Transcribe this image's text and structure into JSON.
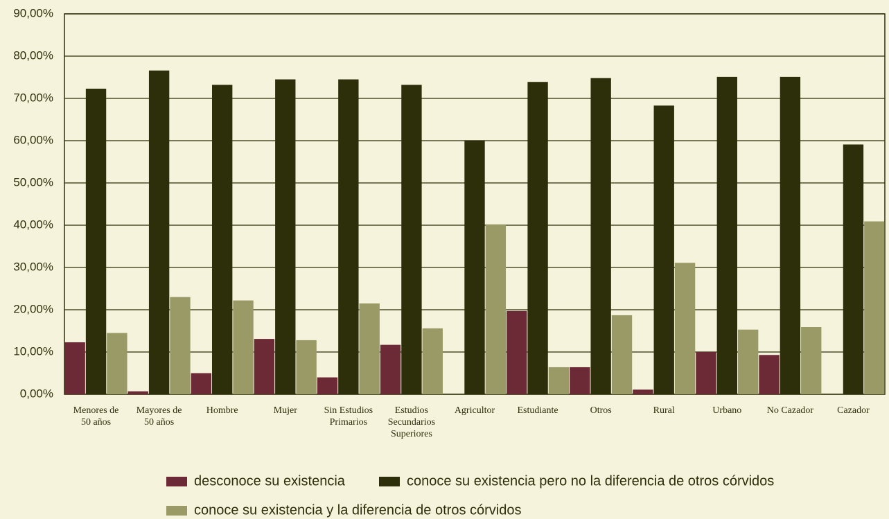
{
  "chart_data": {
    "type": "bar",
    "categories": [
      "Menores de 50 años",
      "Mayores de 50 años",
      "Hombre",
      "Mujer",
      "Sin Estudios Primarios",
      "Estudios Secundarios Superiores",
      "Agricultor",
      "Estudiante",
      "Otros",
      "Rural",
      "Urbano",
      "No Cazador",
      "Cazador"
    ],
    "series": [
      {
        "name": "desconoce su existencia",
        "color": "#6b2a35",
        "values": [
          12.3,
          0.7,
          5.0,
          13.1,
          4.0,
          11.7,
          0,
          19.7,
          6.4,
          1.1,
          10.0,
          9.3,
          0
        ]
      },
      {
        "name": "conoce su existencia pero no la diferencia de otros córvidos",
        "color": "#2d2f0a",
        "values": [
          72.3,
          76.6,
          73.2,
          74.5,
          74.5,
          73.2,
          60.1,
          73.9,
          74.8,
          68.3,
          75.1,
          75.1,
          59.1
        ]
      },
      {
        "name": "conoce su existencia y la diferencia de otros córvidos",
        "color": "#999a66",
        "values": [
          14.5,
          23.0,
          22.2,
          12.8,
          21.5,
          15.6,
          40.2,
          6.4,
          18.7,
          31.1,
          15.3,
          15.9,
          40.9
        ]
      }
    ],
    "ylim": [
      0,
      90
    ],
    "yticks": [
      {
        "value": 0,
        "label": "0,00%"
      },
      {
        "value": 10,
        "label": "10,00%"
      },
      {
        "value": 20,
        "label": "20,00%"
      },
      {
        "value": 30,
        "label": "30,00%"
      },
      {
        "value": 40,
        "label": "40,00%"
      },
      {
        "value": 50,
        "label": "50,00%"
      },
      {
        "value": 60,
        "label": "60,00%"
      },
      {
        "value": 70,
        "label": "70,00%"
      },
      {
        "value": 80,
        "label": "80,00%"
      },
      {
        "value": 90,
        "label": "90,00%"
      }
    ],
    "grid": true
  }
}
